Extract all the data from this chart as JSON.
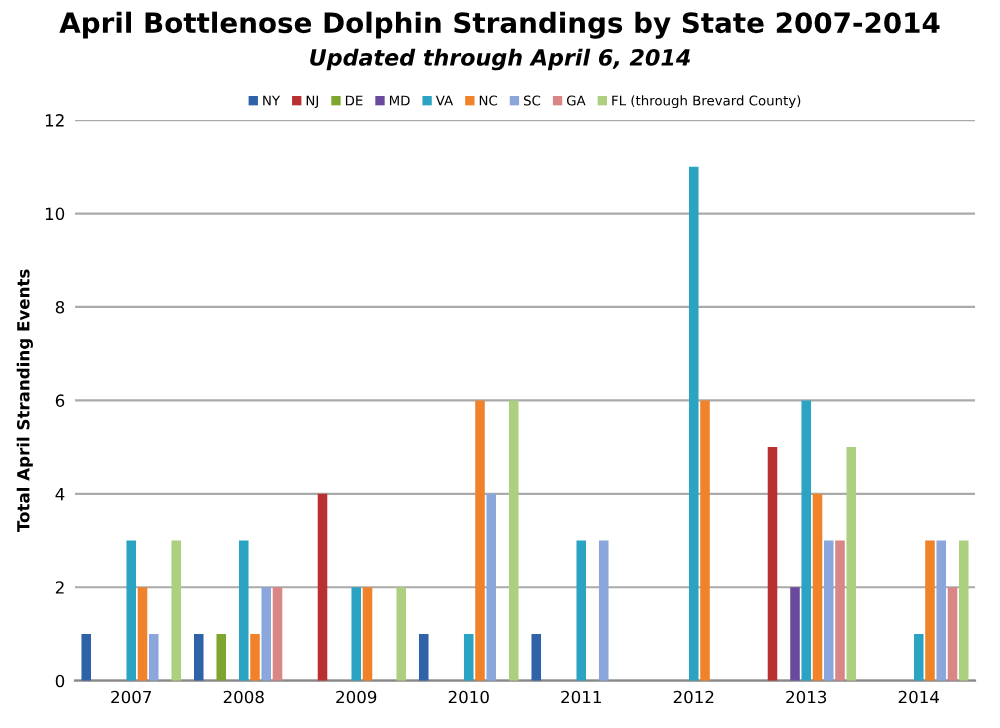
{
  "chart_data": {
    "type": "bar",
    "title": "April Bottlenose Dolphin Strandings by State 2007-2014",
    "subtitle": "Updated through April 6, 2014",
    "ylabel": "Total April Stranding Events",
    "categories": [
      "2007",
      "2008",
      "2009",
      "2010",
      "2011",
      "2012",
      "2013",
      "2014"
    ],
    "series": [
      {
        "name": "NY",
        "color": "#2f62a6",
        "values": [
          1,
          1,
          0,
          1,
          1,
          0,
          0,
          0
        ]
      },
      {
        "name": "NJ",
        "color": "#b8302f",
        "values": [
          0,
          0,
          4,
          0,
          0,
          0,
          5,
          0
        ]
      },
      {
        "name": "DE",
        "color": "#7ea62e",
        "values": [
          0,
          1,
          0,
          0,
          0,
          0,
          0,
          0
        ]
      },
      {
        "name": "MD",
        "color": "#6a4a9c",
        "values": [
          0,
          0,
          0,
          0,
          0,
          0,
          2,
          0
        ]
      },
      {
        "name": "VA",
        "color": "#2ba3c2",
        "values": [
          3,
          3,
          2,
          1,
          3,
          11,
          6,
          1
        ]
      },
      {
        "name": "NC",
        "color": "#f0822a",
        "values": [
          2,
          1,
          2,
          6,
          0,
          6,
          4,
          3
        ]
      },
      {
        "name": "SC",
        "color": "#8aa6da",
        "values": [
          1,
          2,
          0,
          4,
          3,
          0,
          3,
          3
        ]
      },
      {
        "name": "GA",
        "color": "#d98686",
        "values": [
          0,
          2,
          0,
          0,
          0,
          0,
          3,
          2
        ]
      },
      {
        "name": "FL (through Brevard County)",
        "color": "#acd080",
        "values": [
          3,
          0,
          2,
          6,
          0,
          0,
          5,
          3
        ]
      }
    ],
    "ylim": [
      0,
      12
    ],
    "yticks": [
      0,
      2,
      4,
      6,
      8,
      10,
      12
    ],
    "grid": "y",
    "legend": "top"
  }
}
